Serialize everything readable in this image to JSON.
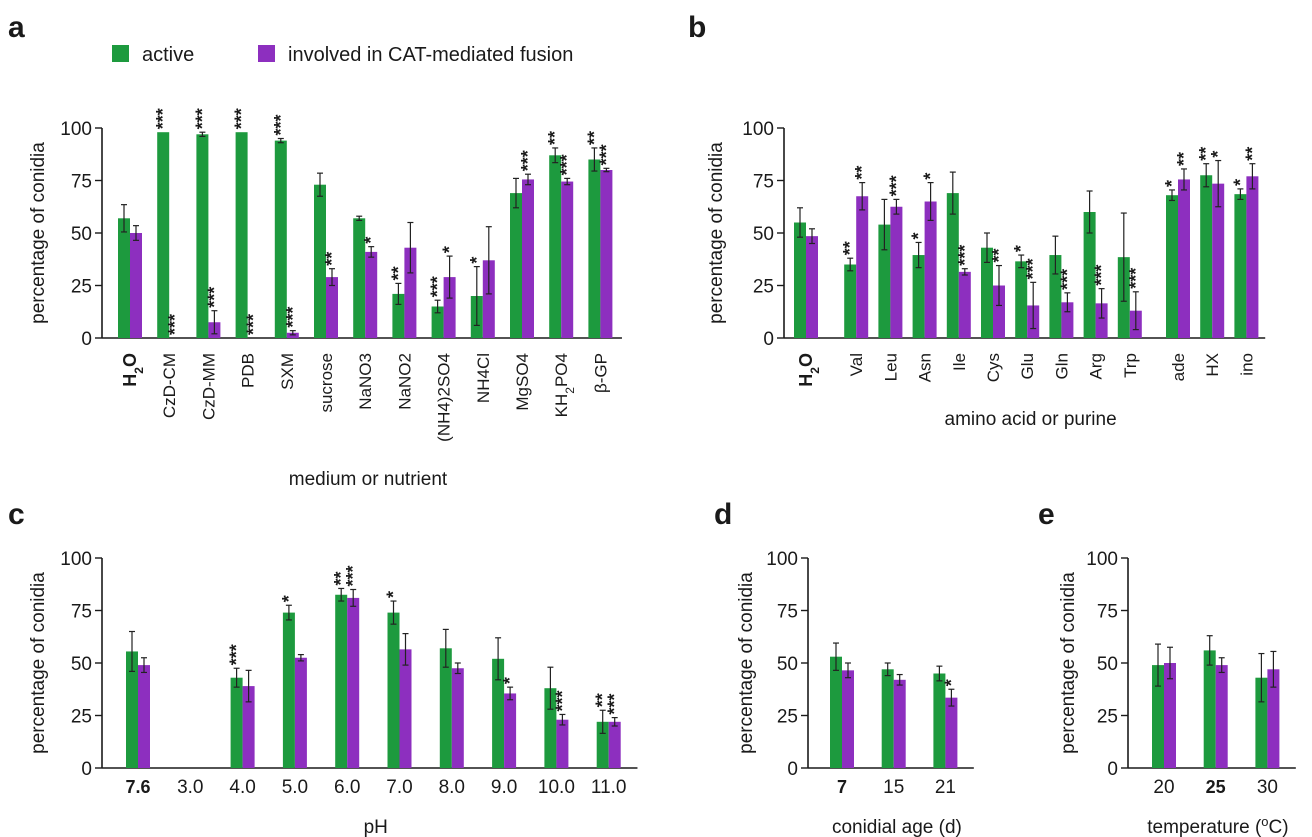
{
  "colors": {
    "active": "#1d9a3e",
    "fusion": "#8d2fbf",
    "axis": "#1a1a1a"
  },
  "legend": {
    "active": "active",
    "fusion": "involved in CAT-mediated fusion"
  },
  "chart_data": [
    {
      "panel": "a",
      "type": "bar",
      "ylabel": "percentage of conidia",
      "xlabel": "medium or nutrient",
      "ylim": [
        0,
        100
      ],
      "yticks": [
        0,
        25,
        50,
        75,
        100
      ],
      "categories": [
        "H2O",
        "CzD-CM",
        "CzD-MM",
        "PDB",
        "SXM",
        "sucrose",
        "NaNO3",
        "NaNO2",
        "(NH4)2SO4",
        "NH4Cl",
        "MgSO4",
        "KH2PO4",
        "β-GP"
      ],
      "category_labels": [
        [
          {
            "t": "H"
          },
          {
            "t": "2",
            "sub": true
          },
          {
            "t": "O"
          }
        ],
        [
          {
            "t": "CzD-CM"
          }
        ],
        [
          {
            "t": "CzD-MM"
          }
        ],
        [
          {
            "t": "PDB"
          }
        ],
        [
          {
            "t": "SXM"
          }
        ],
        [
          {
            "t": "sucrose"
          }
        ],
        [
          {
            "t": "NaNO3"
          }
        ],
        [
          {
            "t": "NaNO2"
          }
        ],
        [
          {
            "t": "(NH4)2SO4"
          }
        ],
        [
          {
            "t": "NH4Cl"
          }
        ],
        [
          {
            "t": "MgSO4"
          }
        ],
        [
          {
            "t": "KH"
          },
          {
            "t": "2",
            "sub": true
          },
          {
            "t": "PO4"
          }
        ],
        [
          {
            "t": "β-GP"
          }
        ]
      ],
      "bold_category": 0,
      "series": [
        {
          "key": "active",
          "values": [
            57,
            98,
            97,
            98,
            94,
            73,
            57,
            21,
            15,
            20,
            69,
            87,
            85
          ],
          "errors": [
            6.5,
            0,
            1,
            0,
            1,
            5.5,
            1,
            5,
            3,
            14,
            7,
            3.5,
            5.5
          ],
          "sig": [
            "",
            "***",
            "***",
            "***",
            "***",
            "",
            "",
            "**",
            "***",
            "*",
            "",
            "**",
            "**"
          ]
        },
        {
          "key": "fusion",
          "values": [
            50,
            0,
            7.5,
            0,
            2.5,
            29,
            41,
            43,
            29,
            37,
            75.5,
            74.5,
            80
          ],
          "errors": [
            3.5,
            0,
            5.5,
            0,
            1,
            4,
            2.5,
            12,
            10,
            16,
            2.5,
            1.5,
            0.8
          ],
          "sig": [
            "",
            "***",
            "***",
            "***",
            "***",
            "**",
            "*",
            "",
            "*",
            "",
            "***",
            "***",
            "***"
          ]
        }
      ]
    },
    {
      "panel": "b",
      "type": "bar",
      "ylabel": "percentage of conidia",
      "xlabel": "amino acid or purine",
      "ylim": [
        0,
        100
      ],
      "yticks": [
        0,
        25,
        50,
        75,
        100
      ],
      "categories": [
        "H2O",
        "Val",
        "Leu",
        "Asn",
        "Ile",
        "Cys",
        "Glu",
        "Gln",
        "Arg",
        "Trp",
        "ade",
        "HX",
        "ino"
      ],
      "category_labels": [
        [
          {
            "t": "H"
          },
          {
            "t": "2",
            "sub": true
          },
          {
            "t": "O"
          }
        ],
        [
          {
            "t": "Val"
          }
        ],
        [
          {
            "t": "Leu"
          }
        ],
        [
          {
            "t": "Asn"
          }
        ],
        [
          {
            "t": "Ile"
          }
        ],
        [
          {
            "t": "Cys"
          }
        ],
        [
          {
            "t": "Glu"
          }
        ],
        [
          {
            "t": "Gln"
          }
        ],
        [
          {
            "t": "Arg"
          }
        ],
        [
          {
            "t": "Trp"
          }
        ],
        [
          {
            "t": "ade"
          }
        ],
        [
          {
            "t": "HX"
          }
        ],
        [
          {
            "t": "ino"
          }
        ]
      ],
      "bold_category": 0,
      "group_gap_after": [
        0,
        9
      ],
      "series": [
        {
          "key": "active",
          "values": [
            55,
            35,
            54,
            39.5,
            69,
            43,
            36.5,
            39.5,
            60,
            38.5,
            68,
            77.5,
            68.5
          ],
          "errors": [
            7,
            3,
            12,
            6,
            10,
            7,
            3,
            9,
            10,
            21,
            2.5,
            5.5,
            2.5
          ],
          "sig": [
            "",
            "**",
            "",
            "*",
            "",
            "",
            "*",
            "",
            "",
            "",
            "*",
            "**",
            "*"
          ]
        },
        {
          "key": "fusion",
          "values": [
            48.5,
            67.5,
            62.5,
            65,
            31.5,
            25,
            15.5,
            17,
            16.5,
            13,
            75.5,
            73.5,
            77
          ],
          "errors": [
            3.5,
            6.5,
            3.5,
            9,
            1.5,
            9.5,
            11,
            4.5,
            7,
            9,
            5,
            11,
            6
          ],
          "sig": [
            "",
            "**",
            "***",
            "*",
            "***",
            "**",
            "***",
            "***",
            "***",
            "***",
            "**",
            "*",
            "**"
          ]
        }
      ]
    },
    {
      "panel": "c",
      "type": "bar",
      "ylabel": "percentage of conidia",
      "xlabel": "pH",
      "ylim": [
        0,
        100
      ],
      "yticks": [
        0,
        25,
        50,
        75,
        100
      ],
      "categories": [
        "7.6",
        "3.0",
        "4.0",
        "5.0",
        "6.0",
        "7.0",
        "8.0",
        "9.0",
        "10.0",
        "11.0"
      ],
      "bold_category": 0,
      "series": [
        {
          "key": "active",
          "values": [
            55.5,
            0,
            43,
            74,
            82.5,
            74,
            57,
            52,
            38,
            22
          ],
          "errors": [
            9.5,
            0,
            4.5,
            3.5,
            3,
            5.5,
            9,
            10,
            10,
            5.5
          ],
          "sig": [
            "",
            "",
            "***",
            "*",
            "**",
            "*",
            "",
            "",
            "",
            "**"
          ]
        },
        {
          "key": "fusion",
          "values": [
            49,
            0,
            39,
            52.5,
            81,
            56.5,
            47.5,
            35.5,
            23,
            22
          ],
          "errors": [
            3.5,
            0,
            7.5,
            1.5,
            4,
            7.5,
            2.5,
            3,
            2.5,
            2
          ],
          "sig": [
            "",
            "",
            "",
            "",
            "***",
            "",
            "",
            "*",
            "***",
            "***"
          ]
        }
      ]
    },
    {
      "panel": "d",
      "type": "bar",
      "ylabel": "percentage of conidia",
      "xlabel": "conidial age (d)",
      "ylim": [
        0,
        100
      ],
      "yticks": [
        0,
        25,
        50,
        75,
        100
      ],
      "categories": [
        "7",
        "15",
        "21"
      ],
      "bold_category": 0,
      "series": [
        {
          "key": "active",
          "values": [
            53,
            47,
            45
          ],
          "errors": [
            6.5,
            3,
            3.5
          ],
          "sig": [
            "",
            "",
            ""
          ]
        },
        {
          "key": "fusion",
          "values": [
            46.5,
            42,
            33.5
          ],
          "errors": [
            3.5,
            2.5,
            4
          ],
          "sig": [
            "",
            "",
            "*"
          ]
        }
      ]
    },
    {
      "panel": "e",
      "type": "bar",
      "ylabel": "percentage of conidia",
      "xlabel": "temperature (oC)",
      "xlabel_parts": [
        {
          "t": "temperature ("
        },
        {
          "t": "o",
          "sup": true
        },
        {
          "t": "C)"
        }
      ],
      "ylim": [
        0,
        100
      ],
      "yticks": [
        0,
        25,
        50,
        75,
        100
      ],
      "categories": [
        "20",
        "25",
        "30"
      ],
      "bold_category": 1,
      "series": [
        {
          "key": "active",
          "values": [
            49,
            56,
            43
          ],
          "errors": [
            10,
            7,
            11.5
          ],
          "sig": [
            "",
            "",
            ""
          ]
        },
        {
          "key": "fusion",
          "values": [
            50,
            49,
            47
          ],
          "errors": [
            7.5,
            3.5,
            8.5
          ],
          "sig": [
            "",
            "",
            ""
          ]
        }
      ]
    }
  ]
}
